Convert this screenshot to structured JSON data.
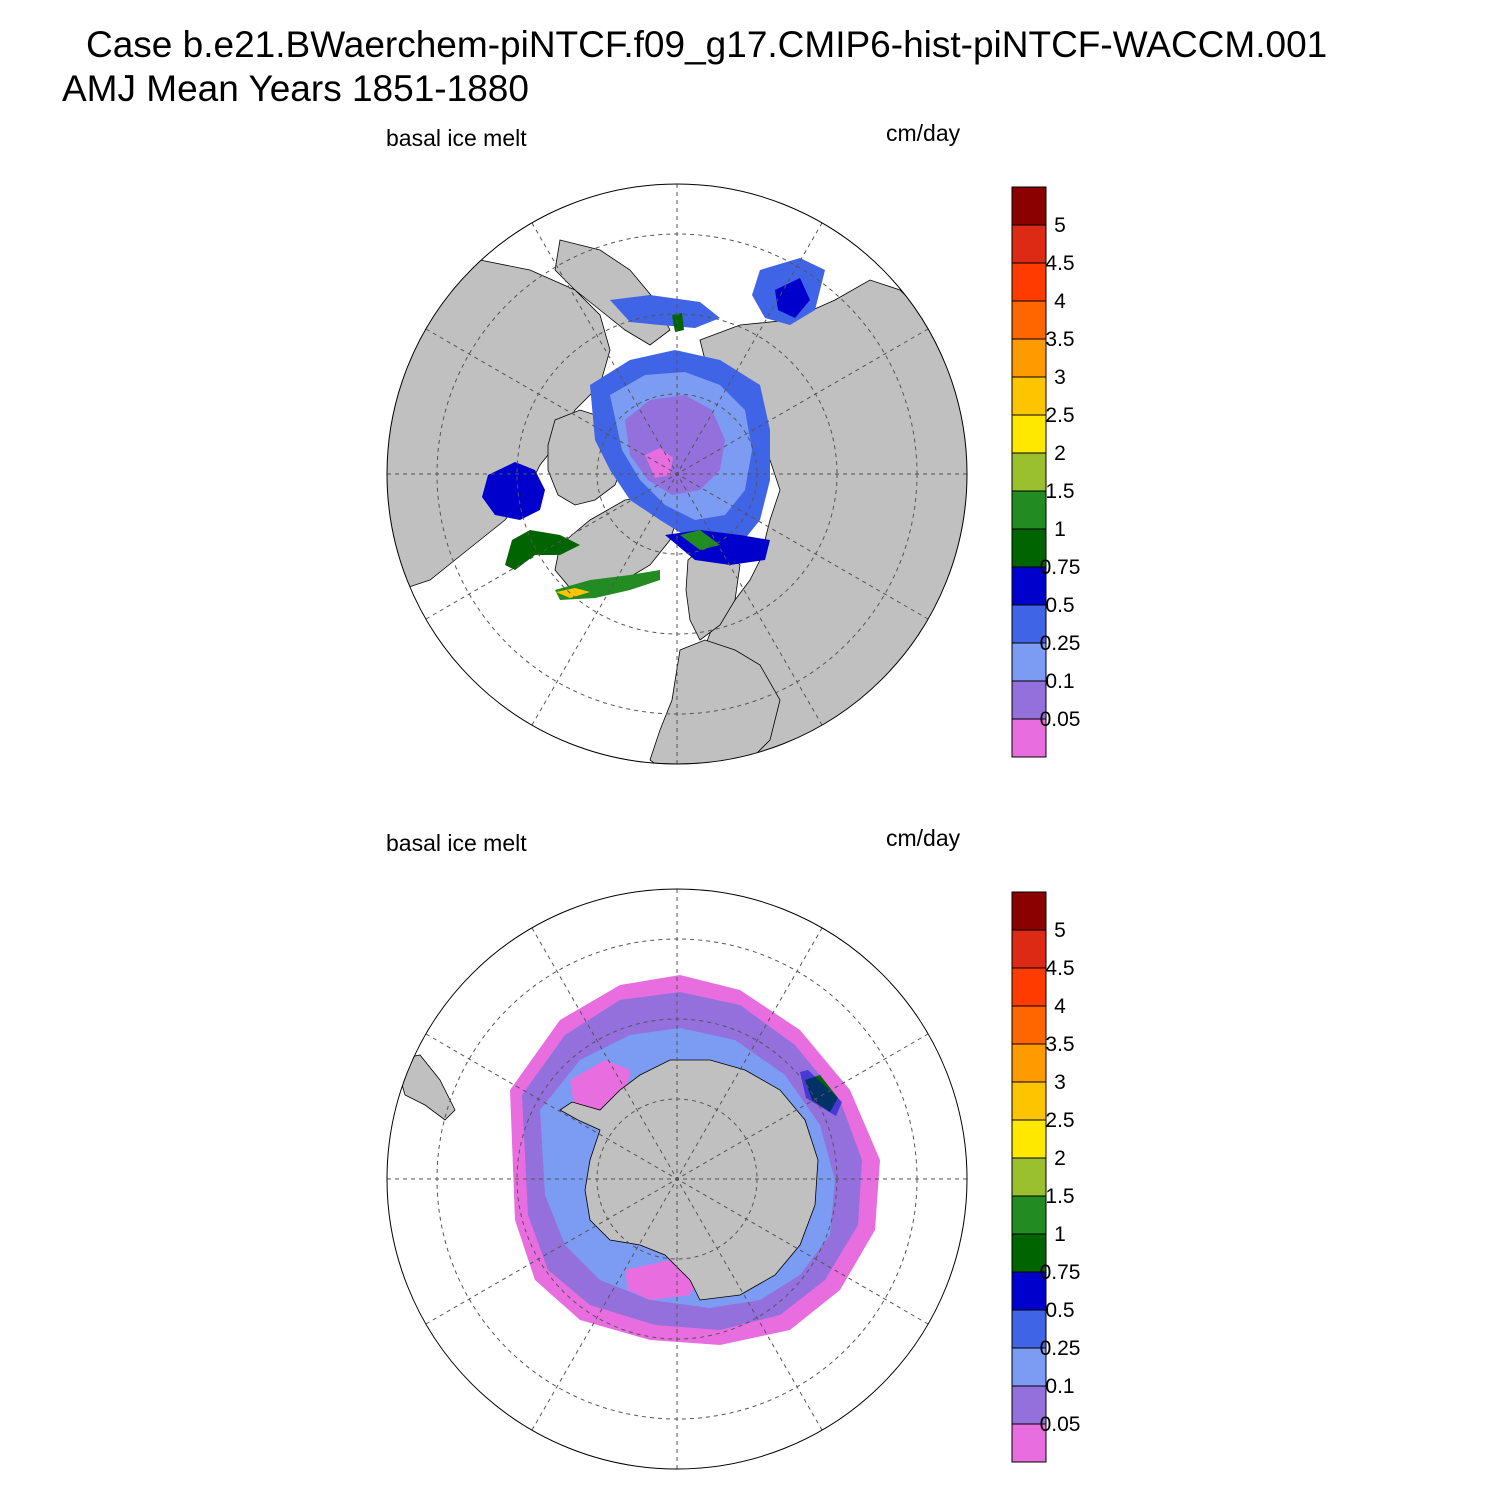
{
  "title": {
    "line1": "Case b.e21.BWaerchem-piNTCF.f09_g17.CMIP6-hist-piNTCF-WACCM.001",
    "line2": "AMJ Mean   Years 1851-1880"
  },
  "panels": [
    {
      "id": "north",
      "variable": "basal ice melt",
      "units": "cm/day",
      "hemisphere": "north"
    },
    {
      "id": "south",
      "variable": "basal ice melt",
      "units": "cm/day",
      "hemisphere": "south"
    }
  ],
  "colorbar": {
    "labels": [
      "5",
      "4.5",
      "4",
      "3.5",
      "3",
      "2.5",
      "2",
      "1.5",
      "1",
      "0.75",
      "0.5",
      "0.25",
      "0.1",
      "0.05"
    ],
    "colors": [
      "#8b0000",
      "#dc2a14",
      "#ff3b00",
      "#ff6600",
      "#ff9a00",
      "#ffc400",
      "#ffe800",
      "#9ac030",
      "#228b22",
      "#006400",
      "#0000cd",
      "#3f64e6",
      "#7b9cf2",
      "#9370db",
      "#e86ee0"
    ]
  },
  "colors": {
    "land": "#c0c0c0",
    "ocean": "#ffffff",
    "grid": "#555555"
  }
}
